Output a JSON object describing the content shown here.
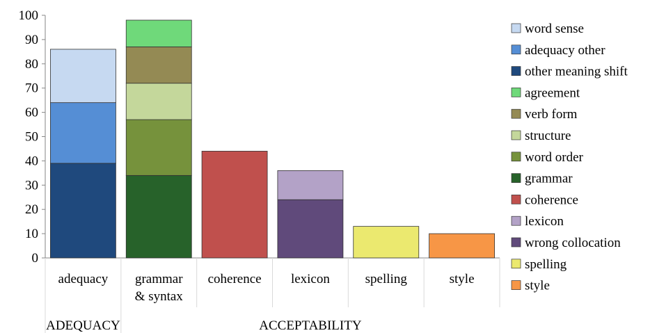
{
  "chart_data": {
    "type": "bar",
    "stacked": true,
    "categories": [
      "adequacy",
      "grammar\n& syntax",
      "coherence",
      "lexicon",
      "spelling",
      "style"
    ],
    "groups": [
      {
        "label": "ADEQUACY",
        "categories": [
          "adequacy"
        ]
      },
      {
        "label": "ACCEPTABILITY",
        "categories": [
          "grammar\n& syntax",
          "coherence",
          "lexicon",
          "spelling",
          "style"
        ]
      }
    ],
    "ylim": [
      0,
      100
    ],
    "yticks": [
      0,
      10,
      20,
      30,
      40,
      50,
      60,
      70,
      80,
      90,
      100
    ],
    "grid": false,
    "legend_position": "right",
    "series": [
      {
        "name": "word sense",
        "color": "#c6d9f1",
        "values": [
          22,
          0,
          0,
          0,
          0,
          0
        ]
      },
      {
        "name": "adequacy other",
        "color": "#558ed5",
        "values": [
          25,
          0,
          0,
          0,
          0,
          0
        ]
      },
      {
        "name": "other meaning shift",
        "color": "#1f497d",
        "values": [
          39,
          0,
          0,
          0,
          0,
          0
        ]
      },
      {
        "name": "agreement",
        "color": "#6fd97a",
        "values": [
          0,
          11,
          0,
          0,
          0,
          0
        ]
      },
      {
        "name": "verb form",
        "color": "#948a54",
        "values": [
          0,
          15,
          0,
          0,
          0,
          0
        ]
      },
      {
        "name": "structure",
        "color": "#c4d79b",
        "values": [
          0,
          15,
          0,
          0,
          0,
          0
        ]
      },
      {
        "name": "word order",
        "color": "#76923c",
        "values": [
          0,
          23,
          0,
          0,
          0,
          0
        ]
      },
      {
        "name": "grammar",
        "color": "#27622a",
        "values": [
          0,
          34,
          0,
          0,
          0,
          0
        ]
      },
      {
        "name": "coherence",
        "color": "#c0504d",
        "values": [
          0,
          0,
          44,
          0,
          0,
          0
        ]
      },
      {
        "name": "lexicon",
        "color": "#b3a2c7",
        "values": [
          0,
          0,
          0,
          12,
          0,
          0
        ]
      },
      {
        "name": "wrong collocation",
        "color": "#604a7b",
        "values": [
          0,
          0,
          0,
          24,
          0,
          0
        ]
      },
      {
        "name": "spelling",
        "color": "#ebe96f",
        "values": [
          0,
          0,
          0,
          0,
          13,
          0
        ]
      },
      {
        "name": "style",
        "color": "#f79646",
        "values": [
          0,
          0,
          0,
          0,
          0,
          10
        ]
      }
    ],
    "stack_order_bottom_to_top": [
      "other meaning shift",
      "adequacy other",
      "word sense",
      "grammar",
      "word order",
      "structure",
      "verb form",
      "agreement",
      "coherence",
      "wrong collocation",
      "lexicon",
      "spelling",
      "style"
    ]
  }
}
